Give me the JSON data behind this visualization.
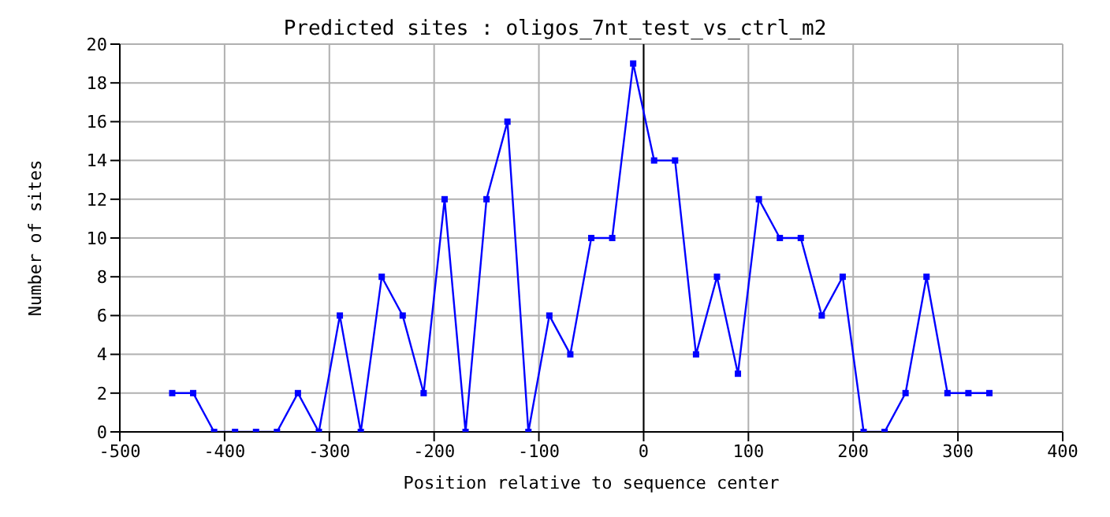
{
  "chart_data": {
    "type": "line",
    "title": "Predicted sites : oligos_7nt_test_vs_ctrl_m2",
    "xlabel": "Position relative to sequence center",
    "ylabel": "Number of sites",
    "x": [
      -450,
      -430,
      -410,
      -390,
      -370,
      -350,
      -330,
      -310,
      -290,
      -270,
      -250,
      -230,
      -210,
      -190,
      -170,
      -150,
      -130,
      -110,
      -90,
      -70,
      -50,
      -30,
      -10,
      10,
      30,
      50,
      70,
      90,
      110,
      130,
      150,
      170,
      190,
      210,
      230,
      250,
      270,
      290,
      310,
      330
    ],
    "series": [
      {
        "color": "#0000ff",
        "values": [
          2,
          2,
          0,
          0,
          0,
          0,
          2,
          0,
          6,
          0,
          8,
          6,
          2,
          12,
          0,
          12,
          16,
          0,
          6,
          4,
          10,
          10,
          19,
          14,
          14,
          4,
          8,
          3,
          12,
          10,
          10,
          6,
          8,
          0,
          0,
          2,
          8,
          2,
          2,
          2
        ]
      }
    ],
    "xlim": [
      -500,
      400
    ],
    "xticks": [
      -500,
      -400,
      -300,
      -200,
      -100,
      0,
      100,
      200,
      300,
      400
    ],
    "ylim": [
      0,
      20
    ],
    "yticks": [
      0,
      2,
      4,
      6,
      8,
      10,
      12,
      14,
      16,
      18,
      20
    ],
    "ref_lines": [
      {
        "axis": "x",
        "value": 0,
        "color": "#000000"
      }
    ],
    "grid": true,
    "legend": false,
    "marker": "square",
    "line_style": "solid"
  }
}
